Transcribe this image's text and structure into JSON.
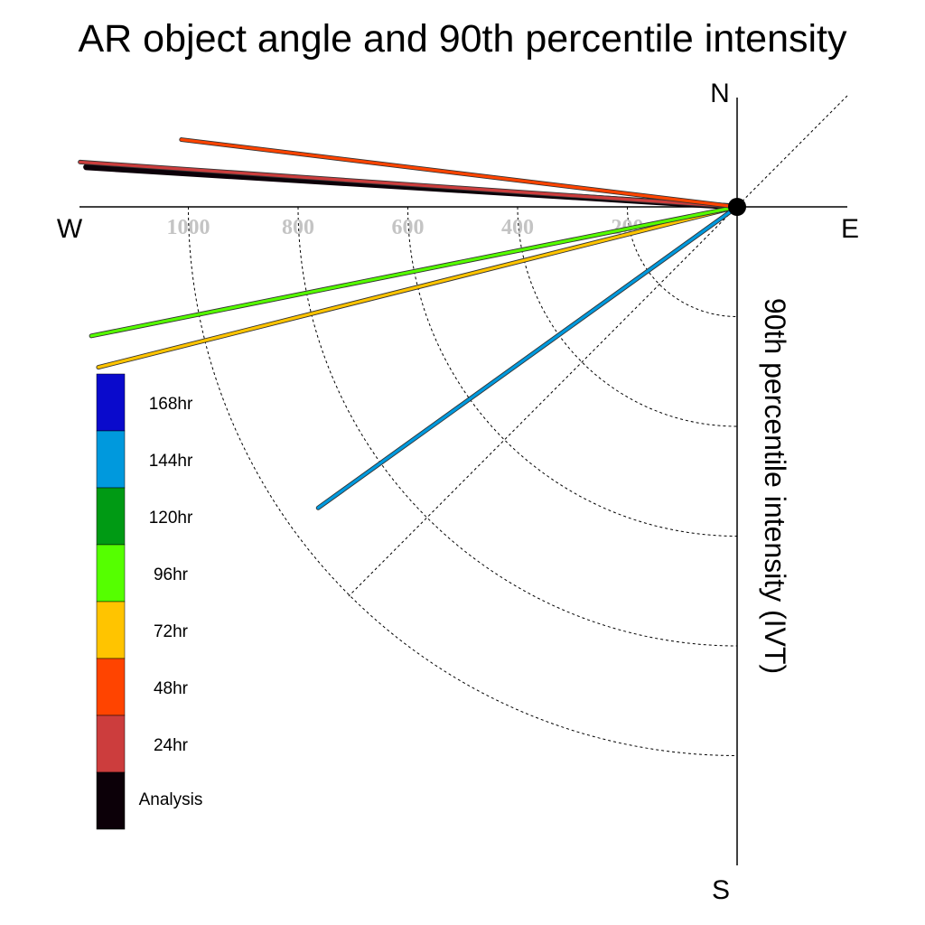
{
  "chart_data": {
    "type": "polar-line",
    "title": "AR object angle and 90th percentile intensity",
    "radial_label": "90th percentile intensity (IVT)",
    "directions": {
      "north": "N",
      "south": "S",
      "east": "E",
      "west": "W"
    },
    "radial_ticks": [
      {
        "value": 200,
        "label": "200"
      },
      {
        "value": 400,
        "label": "400"
      },
      {
        "value": 600,
        "label": "600"
      },
      {
        "value": 800,
        "label": "800"
      },
      {
        "value": 1000,
        "label": "1000"
      }
    ],
    "radial_max": 1200,
    "series": [
      {
        "name": "168hr",
        "color": "#0a0acc",
        "angle_deg": null,
        "intensity": null
      },
      {
        "name": "144hr",
        "color": "#0099dd",
        "angle_deg": -35.7,
        "intensity": 940
      },
      {
        "name": "120hr",
        "color": "#009a14",
        "angle_deg": null,
        "intensity": null
      },
      {
        "name": "96hr",
        "color": "#55ff00",
        "angle_deg": -11.3,
        "intensity": 1200
      },
      {
        "name": "72hr",
        "color": "#ffc400",
        "angle_deg": -14.1,
        "intensity": 1200
      },
      {
        "name": "48hr",
        "color": "#ff4400",
        "angle_deg": 6.9,
        "intensity": 1020
      },
      {
        "name": "24hr",
        "color": "#cc3d3d",
        "angle_deg": 3.9,
        "intensity": 1200
      },
      {
        "name": "Analysis",
        "color": "#0c0008",
        "angle_deg": 3.5,
        "intensity": 1188
      }
    ]
  }
}
